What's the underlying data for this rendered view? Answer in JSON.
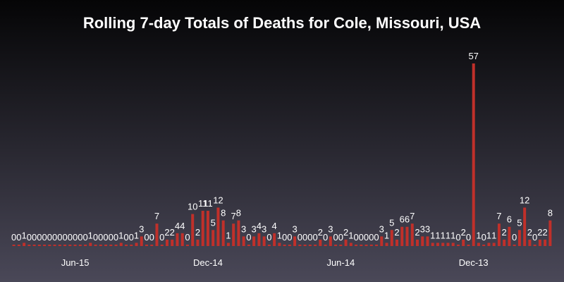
{
  "chart_data": {
    "type": "bar",
    "title": "Rolling 7-day Totals of Deaths for Cole, Missouri, USA",
    "xlabel": "",
    "ylabel": "",
    "ylim": [
      0,
      60
    ],
    "grid": false,
    "bar_color": "#c0302a",
    "x_ticks": [
      {
        "label": "Jun-15",
        "index": 12
      },
      {
        "label": "Dec-14",
        "index": 38
      },
      {
        "label": "Jun-14",
        "index": 64
      },
      {
        "label": "Dec-13",
        "index": 90
      }
    ],
    "values": [
      0,
      0,
      1,
      0,
      0,
      0,
      0,
      0,
      0,
      0,
      0,
      0,
      0,
      0,
      0,
      1,
      0,
      0,
      0,
      0,
      0,
      1,
      0,
      0,
      1,
      3,
      0,
      0,
      7,
      0,
      2,
      2,
      4,
      4,
      0,
      10,
      2,
      11,
      11,
      5,
      12,
      8,
      1,
      7,
      8,
      3,
      0,
      3,
      4,
      3,
      0,
      4,
      1,
      0,
      0,
      3,
      0,
      0,
      0,
      0,
      2,
      0,
      3,
      0,
      0,
      2,
      1,
      0,
      0,
      0,
      0,
      0,
      3,
      1,
      5,
      2,
      6,
      6,
      7,
      2,
      3,
      3,
      1,
      1,
      1,
      1,
      1,
      0,
      2,
      0,
      57,
      1,
      0,
      1,
      1,
      7,
      2,
      6,
      0,
      5,
      12,
      2,
      0,
      2,
      2,
      8
    ]
  }
}
